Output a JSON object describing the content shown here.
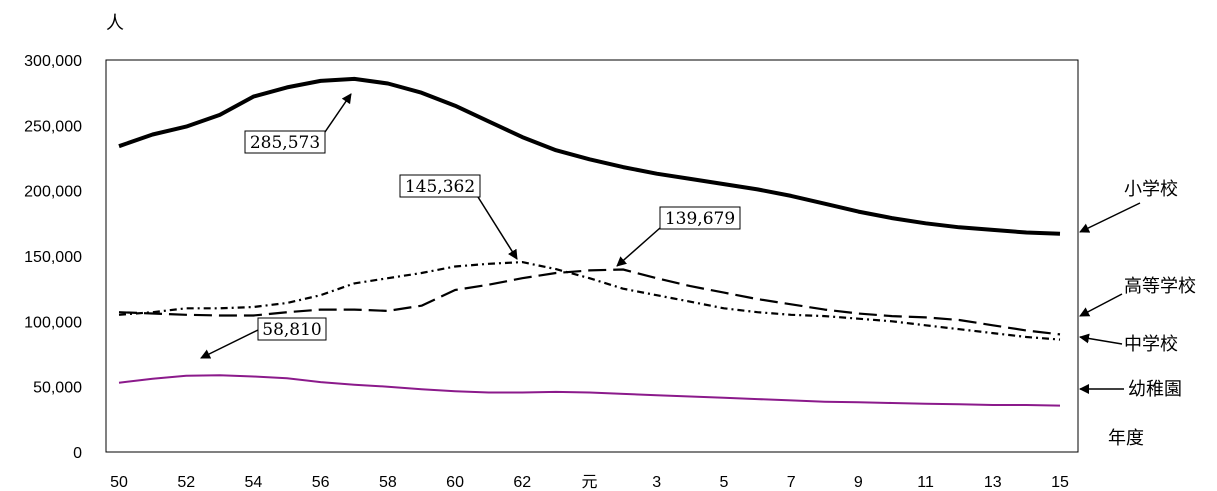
{
  "chart_data": {
    "type": "line",
    "ylabel": "人",
    "xlabel": "年度",
    "ylim": [
      0,
      300000
    ],
    "x_tick_labels": [
      "50",
      "52",
      "54",
      "56",
      "58",
      "60",
      "62",
      "元",
      "3",
      "5",
      "7",
      "9",
      "11",
      "13",
      "15"
    ],
    "y_tick_labels": [
      "0",
      "50,000",
      "100,000",
      "150,000",
      "200,000",
      "250,000",
      "300,000"
    ],
    "y_tick_values": [
      0,
      50000,
      100000,
      150000,
      200000,
      250000,
      300000
    ],
    "categories": [
      "50",
      "51",
      "52",
      "53",
      "54",
      "55",
      "56",
      "57",
      "58",
      "59",
      "60",
      "61",
      "62",
      "63",
      "元",
      "2",
      "3",
      "4",
      "5",
      "6",
      "7",
      "8",
      "9",
      "10",
      "11",
      "12",
      "13",
      "14",
      "15"
    ],
    "series": [
      {
        "name": "小学校",
        "color": "#000000",
        "style": "solid-thick",
        "values": [
          234000,
          243000,
          249000,
          258000,
          272000,
          279000,
          284000,
          285573,
          282000,
          275000,
          265000,
          253000,
          241000,
          231000,
          224000,
          218000,
          213000,
          209000,
          205000,
          201000,
          196000,
          190000,
          184000,
          179000,
          175000,
          172000,
          170000,
          168000,
          167000
        ]
      },
      {
        "name": "高等学校",
        "color": "#000000",
        "style": "long-dash",
        "values": [
          107000,
          106000,
          105000,
          104500,
          104500,
          107000,
          109000,
          109000,
          108000,
          112000,
          124000,
          128000,
          133000,
          137000,
          139000,
          139679,
          133000,
          127000,
          122000,
          117000,
          113000,
          109000,
          106000,
          104000,
          103000,
          101000,
          97000,
          93000,
          90000
        ]
      },
      {
        "name": "中学校",
        "color": "#000000",
        "style": "dash-dot",
        "values": [
          105000,
          107000,
          110000,
          110000,
          111000,
          114000,
          120000,
          129000,
          133000,
          137000,
          142000,
          144000,
          145362,
          140000,
          133000,
          125000,
          120000,
          115000,
          110000,
          107000,
          105000,
          104000,
          102000,
          100000,
          97000,
          94000,
          91000,
          88000,
          86000
        ]
      },
      {
        "name": "幼稚園",
        "color": "#8b1a8b",
        "style": "solid-thin",
        "values": [
          53000,
          56000,
          58300,
          58810,
          57800,
          56500,
          53500,
          51500,
          50000,
          48000,
          46500,
          45500,
          45500,
          46000,
          45500,
          44500,
          43500,
          42500,
          41500,
          40500,
          39500,
          38500,
          38000,
          37500,
          37000,
          36500,
          36000,
          36000,
          35500
        ]
      }
    ],
    "annotations": [
      {
        "text": "285,573",
        "series": "小学校"
      },
      {
        "text": "145,362",
        "series": "中学校"
      },
      {
        "text": "139,679",
        "series": "高等学校"
      },
      {
        "text": "58,810",
        "series": "幼稚園"
      }
    ],
    "legend_side_labels": [
      "小学校",
      "高等学校",
      "中学校",
      "幼稚園"
    ],
    "grid": false
  }
}
